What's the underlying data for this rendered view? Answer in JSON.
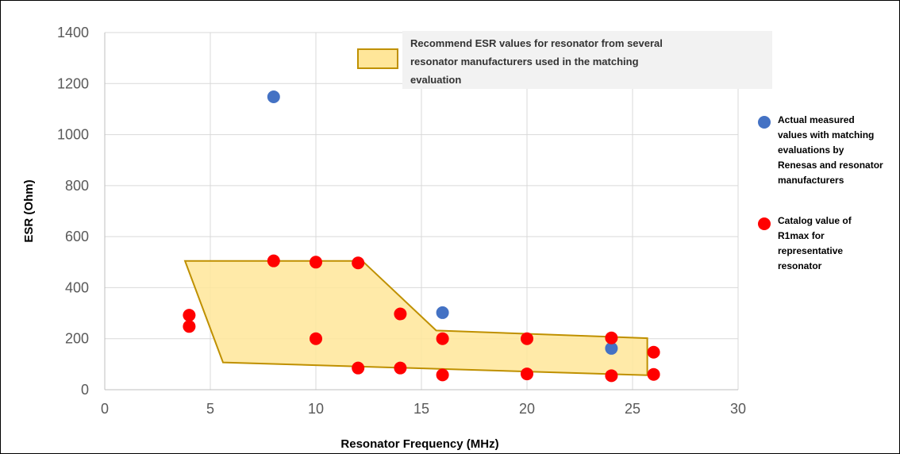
{
  "chart_data": {
    "type": "scatter",
    "xlabel": "Resonator Frequency (MHz)",
    "ylabel": "ESR (Ohm)",
    "xlim": [
      0,
      30
    ],
    "ylim": [
      0,
      1400
    ],
    "x_ticks": [
      0,
      5,
      10,
      15,
      20,
      25,
      30
    ],
    "y_ticks": [
      0,
      200,
      400,
      600,
      800,
      1000,
      1200,
      1400
    ],
    "grid": true,
    "legend_position": "right",
    "colors": {
      "measured": "#4472C4",
      "catalog": "#FF0000",
      "region_fill": "#FFE699",
      "region_stroke": "#BF9000",
      "grid": "#D9D9D9",
      "annotation_bg": "#F2F2F2"
    },
    "series": [
      {
        "name": "Actual measured values with matching evaluations by Renesas and resonator manufacturers",
        "legend_lines": [
          "Actual measured",
          "values with matching",
          "evaluations by",
          "Renesas and resonator",
          "manufacturers"
        ],
        "color": "#4472C4",
        "points": [
          [
            8,
            1148
          ],
          [
            16,
            302
          ],
          [
            24,
            162
          ]
        ]
      },
      {
        "name": "Catalog value of R1max for representative resonator",
        "legend_lines": [
          "Catalog value of",
          "R1max for",
          "representative",
          "resonator"
        ],
        "color": "#FF0000",
        "points": [
          [
            4,
            292
          ],
          [
            4,
            248
          ],
          [
            8,
            505
          ],
          [
            10,
            500
          ],
          [
            10,
            200
          ],
          [
            12,
            497
          ],
          [
            12,
            85
          ],
          [
            14,
            297
          ],
          [
            14,
            85
          ],
          [
            16,
            200
          ],
          [
            16,
            58
          ],
          [
            20,
            200
          ],
          [
            20,
            62
          ],
          [
            24,
            203
          ],
          [
            24,
            55
          ],
          [
            26,
            147
          ],
          [
            26,
            60
          ]
        ]
      }
    ],
    "region": {
      "label_lines": [
        "Recommend ESR values for resonator from several",
        "resonator manufacturers used in the matching",
        "evaluation"
      ],
      "polygon": [
        [
          3.8,
          505
        ],
        [
          12.2,
          505
        ],
        [
          15.7,
          232
        ],
        [
          25.7,
          202
        ],
        [
          25.7,
          57
        ],
        [
          5.6,
          107
        ]
      ]
    }
  }
}
